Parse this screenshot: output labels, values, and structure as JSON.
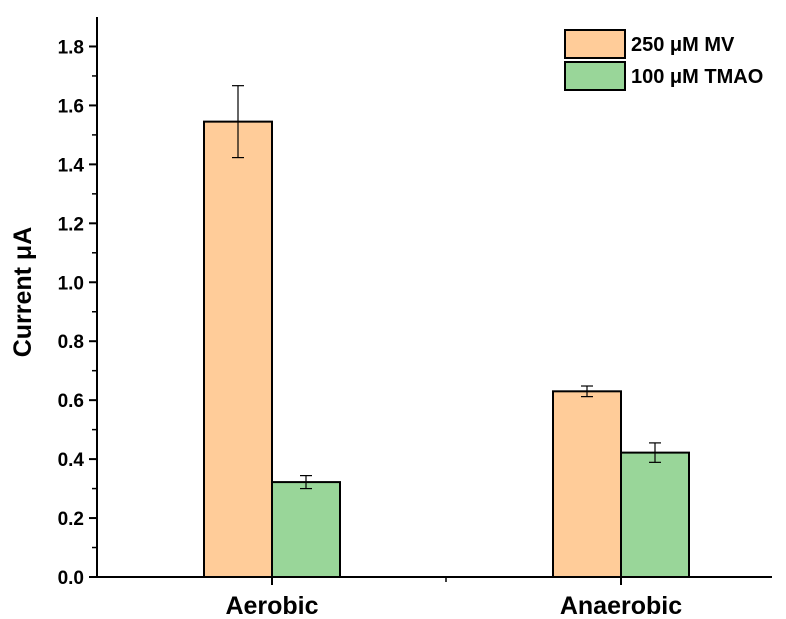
{
  "chart_data": {
    "type": "bar",
    "categories": [
      "Aerobic",
      "Anaerobic"
    ],
    "series": [
      {
        "name": "250 μM MV",
        "values": [
          1.545,
          0.63
        ],
        "errors": [
          0.122,
          0.018
        ],
        "color": "#FFCC99"
      },
      {
        "name": "100 μM TMAO",
        "values": [
          0.322,
          0.422
        ],
        "errors": [
          0.022,
          0.033
        ],
        "color": "#99D699"
      }
    ],
    "ylabel": "Current μA",
    "xlabel": "",
    "ylim": [
      0,
      1.9
    ],
    "yticks": [
      "0.0",
      "0.2",
      "0.4",
      "0.6",
      "0.8",
      "1.0",
      "1.2",
      "1.4",
      "1.6",
      "1.8"
    ],
    "grid": false,
    "legend_position": "top-right"
  }
}
